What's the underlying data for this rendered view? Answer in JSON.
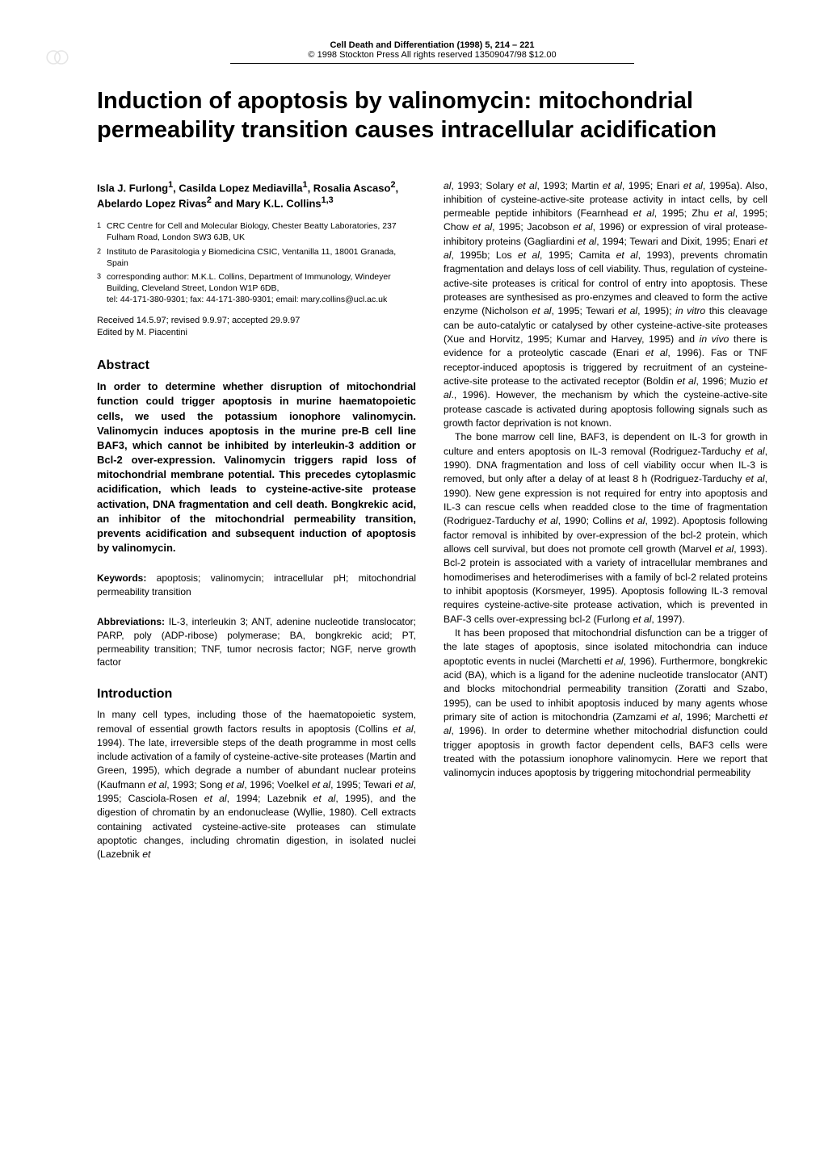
{
  "journal": {
    "line1": "Cell Death and Differentiation (1998) 5, 214 – 221",
    "line2": "© 1998 Stockton Press   All rights reserved 13509047/98 $12.00"
  },
  "title": "Induction of apoptosis by valinomycin: mitochondrial permeability transition causes intracellular acidification",
  "authors_html": "Isla J. Furlong<sup>1</sup>, Casilda Lopez Mediavilla<sup>1</sup>, Rosalia Ascaso<sup>2</sup>, Abelardo Lopez Rivas<sup>2</sup> and Mary K.L. Collins<sup>1,3</sup>",
  "affiliations": [
    {
      "num": "1",
      "text": "CRC Centre for Cell and Molecular Biology, Chester Beatty Laboratories, 237 Fulham Road, London SW3 6JB, UK"
    },
    {
      "num": "2",
      "text": "Instituto de Parasitologia y Biomedicina CSIC, Ventanilla 11, 18001 Granada, Spain"
    },
    {
      "num": "3",
      "text": "corresponding author: M.K.L. Collins, Department of Immunology, Windeyer Building, Cleveland Street, London W1P 6DB,\ntel: 44-171-380-9301; fax: 44-171-380-9301; email: mary.collins@ucl.ac.uk"
    }
  ],
  "received": "Received 14.5.97; revised 9.9.97; accepted 29.9.97",
  "edited": "Edited by M. Piacentini",
  "abstract_heading": "Abstract",
  "abstract_body": "In order to determine whether disruption of mitochondrial function could trigger apoptosis in murine haematopoietic cells, we used the potassium ionophore valinomycin. Valinomycin induces apoptosis in the murine pre-B cell line BAF3, which cannot be inhibited by interleukin-3 addition or Bcl-2 over-expression. Valinomycin triggers rapid loss of mitochondrial membrane potential. This precedes cytoplasmic acidification, which leads to cysteine-active-site protease activation, DNA fragmentation and cell death. Bongkrekic acid, an inhibitor of the mitochondrial permeability transition, prevents acidification and subsequent induction of apoptosis by valinomycin.",
  "keywords_label": "Keywords:",
  "keywords_text": " apoptosis; valinomycin; intracellular pH;  mitochondrial permeability transition",
  "abbrev_label": "Abbreviations:",
  "abbrev_text": " IL-3, interleukin 3; ANT, adenine nucleotide translocator; PARP, poly (ADP-ribose) polymerase; BA, bongkrekic acid; PT, permeability transition; TNF, tumor necrosis factor; NGF, nerve growth factor",
  "intro_heading": "Introduction",
  "intro_body_html": "In many cell types, including those of the haematopoietic system, removal of essential growth factors results in apoptosis (Collins <span class=\"em\">et al</span>, 1994). The late, irreversible steps of the death programme in most cells include activation of a family of cysteine-active-site proteases (Martin and Green, 1995), which degrade a number of abundant nuclear proteins (Kaufmann <span class=\"em\">et al</span>, 1993; Song <span class=\"em\">et al</span>, 1996; Voelkel <span class=\"em\">et al</span>, 1995; Tewari <span class=\"em\">et al</span>, 1995; Casciola-Rosen <span class=\"em\">et al</span>, 1994; Lazebnik <span class=\"em\">et al</span>, 1995), and the digestion of chromatin by an endonuclease (Wyllie, 1980). Cell extracts containing activated cysteine-active-site proteases can stimulate apoptotic changes, including chromatin digestion, in isolated nuclei (Lazebnik <span class=\"em\">et</span>",
  "right_p1_html": "<span class=\"em\">al</span>, 1993; Solary <span class=\"em\">et al</span>, 1993; Martin <span class=\"em\">et al</span>, 1995; Enari <span class=\"em\">et al</span>, 1995a). Also, inhibition of cysteine-active-site protease activity in intact cells, by cell permeable peptide inhibitors (Fearnhead <span class=\"em\">et al</span>, 1995; Zhu <span class=\"em\">et al</span>, 1995; Chow <span class=\"em\">et al</span>, 1995; Jacobson <span class=\"em\">et al</span>, 1996) or expression of viral protease-inhibitory proteins (Gagliardini <span class=\"em\">et al</span>, 1994; Tewari and Dixit, 1995; Enari <span class=\"em\">et al</span>, 1995b; Los <span class=\"em\">et al</span>, 1995; Camita <span class=\"em\">et al</span>, 1993), prevents chromatin fragmentation and delays loss of cell viability. Thus, regulation of cysteine-active-site proteases is critical for control of entry into apoptosis. These proteases are synthesised as pro-enzymes and cleaved to form the active enzyme (Nicholson <span class=\"em\">et al</span>, 1995; Tewari <span class=\"em\">et al</span>, 1995); <span class=\"em\">in vitro</span> this cleavage can be auto-catalytic or catalysed by other cysteine-active-site proteases (Xue and Horvitz, 1995; Kumar and Harvey, 1995) and <span class=\"em\">in vivo</span> there is evidence for a proteolytic cascade (Enari <span class=\"em\">et al</span>, 1996). Fas or TNF receptor-induced apoptosis is triggered by recruitment of an cysteine-active-site protease to the activated receptor (Boldin <span class=\"em\">et al</span>, 1996; Muzio <span class=\"em\">et al</span>., 1996). However, the mechanism by which the cysteine-active-site protease cascade is activated during apoptosis following signals such as growth factor deprivation is not known.",
  "right_p2_html": "The bone marrow cell line, BAF3, is dependent on IL-3 for growth in culture and enters apoptosis on IL-3 removal (Rodriguez-Tarduchy <span class=\"em\">et al</span>, 1990). DNA fragmentation and loss of cell viability occur when IL-3 is removed, but only after a delay of at least 8 h (Rodriguez-Tarduchy <span class=\"em\">et al</span>, 1990). New gene expression is not required for entry into apoptosis and IL-3 can rescue cells when readded close to the time of fragmentation (Rodriguez-Tarduchy <span class=\"em\">et al</span>, 1990; Collins <span class=\"em\">et al</span>, 1992). Apoptosis following factor removal is inhibited by over-expression of the bcl-2 protein, which allows cell survival, but does not promote cell growth (Marvel <span class=\"em\">et al</span>, 1993). Bcl-2 protein is associated with a variety of intracellular membranes and homodimerises and heterodimerises with a family of bcl-2 related proteins to inhibit apoptosis (Korsmeyer, 1995). Apoptosis following IL-3 removal requires cysteine-active-site protease activation, which is prevented in BAF-3 cells over-expressing bcl-2 (Furlong <span class=\"em\">et al</span>, 1997).",
  "right_p3_html": "It has been proposed that mitochondrial disfunction can be a trigger of the late stages of apoptosis, since isolated mitochondria can induce apoptotic events in nuclei (Marchetti <span class=\"em\">et al</span>, 1996). Furthermore, bongkrekic acid (BA), which is a ligand for the adenine nucleotide translocator (ANT) and blocks mitochondrial permeability transition (Zoratti and Szabo, 1995), can be used to inhibit apoptosis induced by many agents whose primary site of action is mitochondria (Zamzami <span class=\"em\">et al</span>, 1996; Marchetti <span class=\"em\">et al</span>, 1996). In order to determine whether mitochodrial disfunction could trigger apoptosis in growth factor dependent cells, BAF3 cells were treated with the potassium ionophore valinomycin. Here we report that valinomycin induces apoptosis by triggering mitochondrial permeability"
}
